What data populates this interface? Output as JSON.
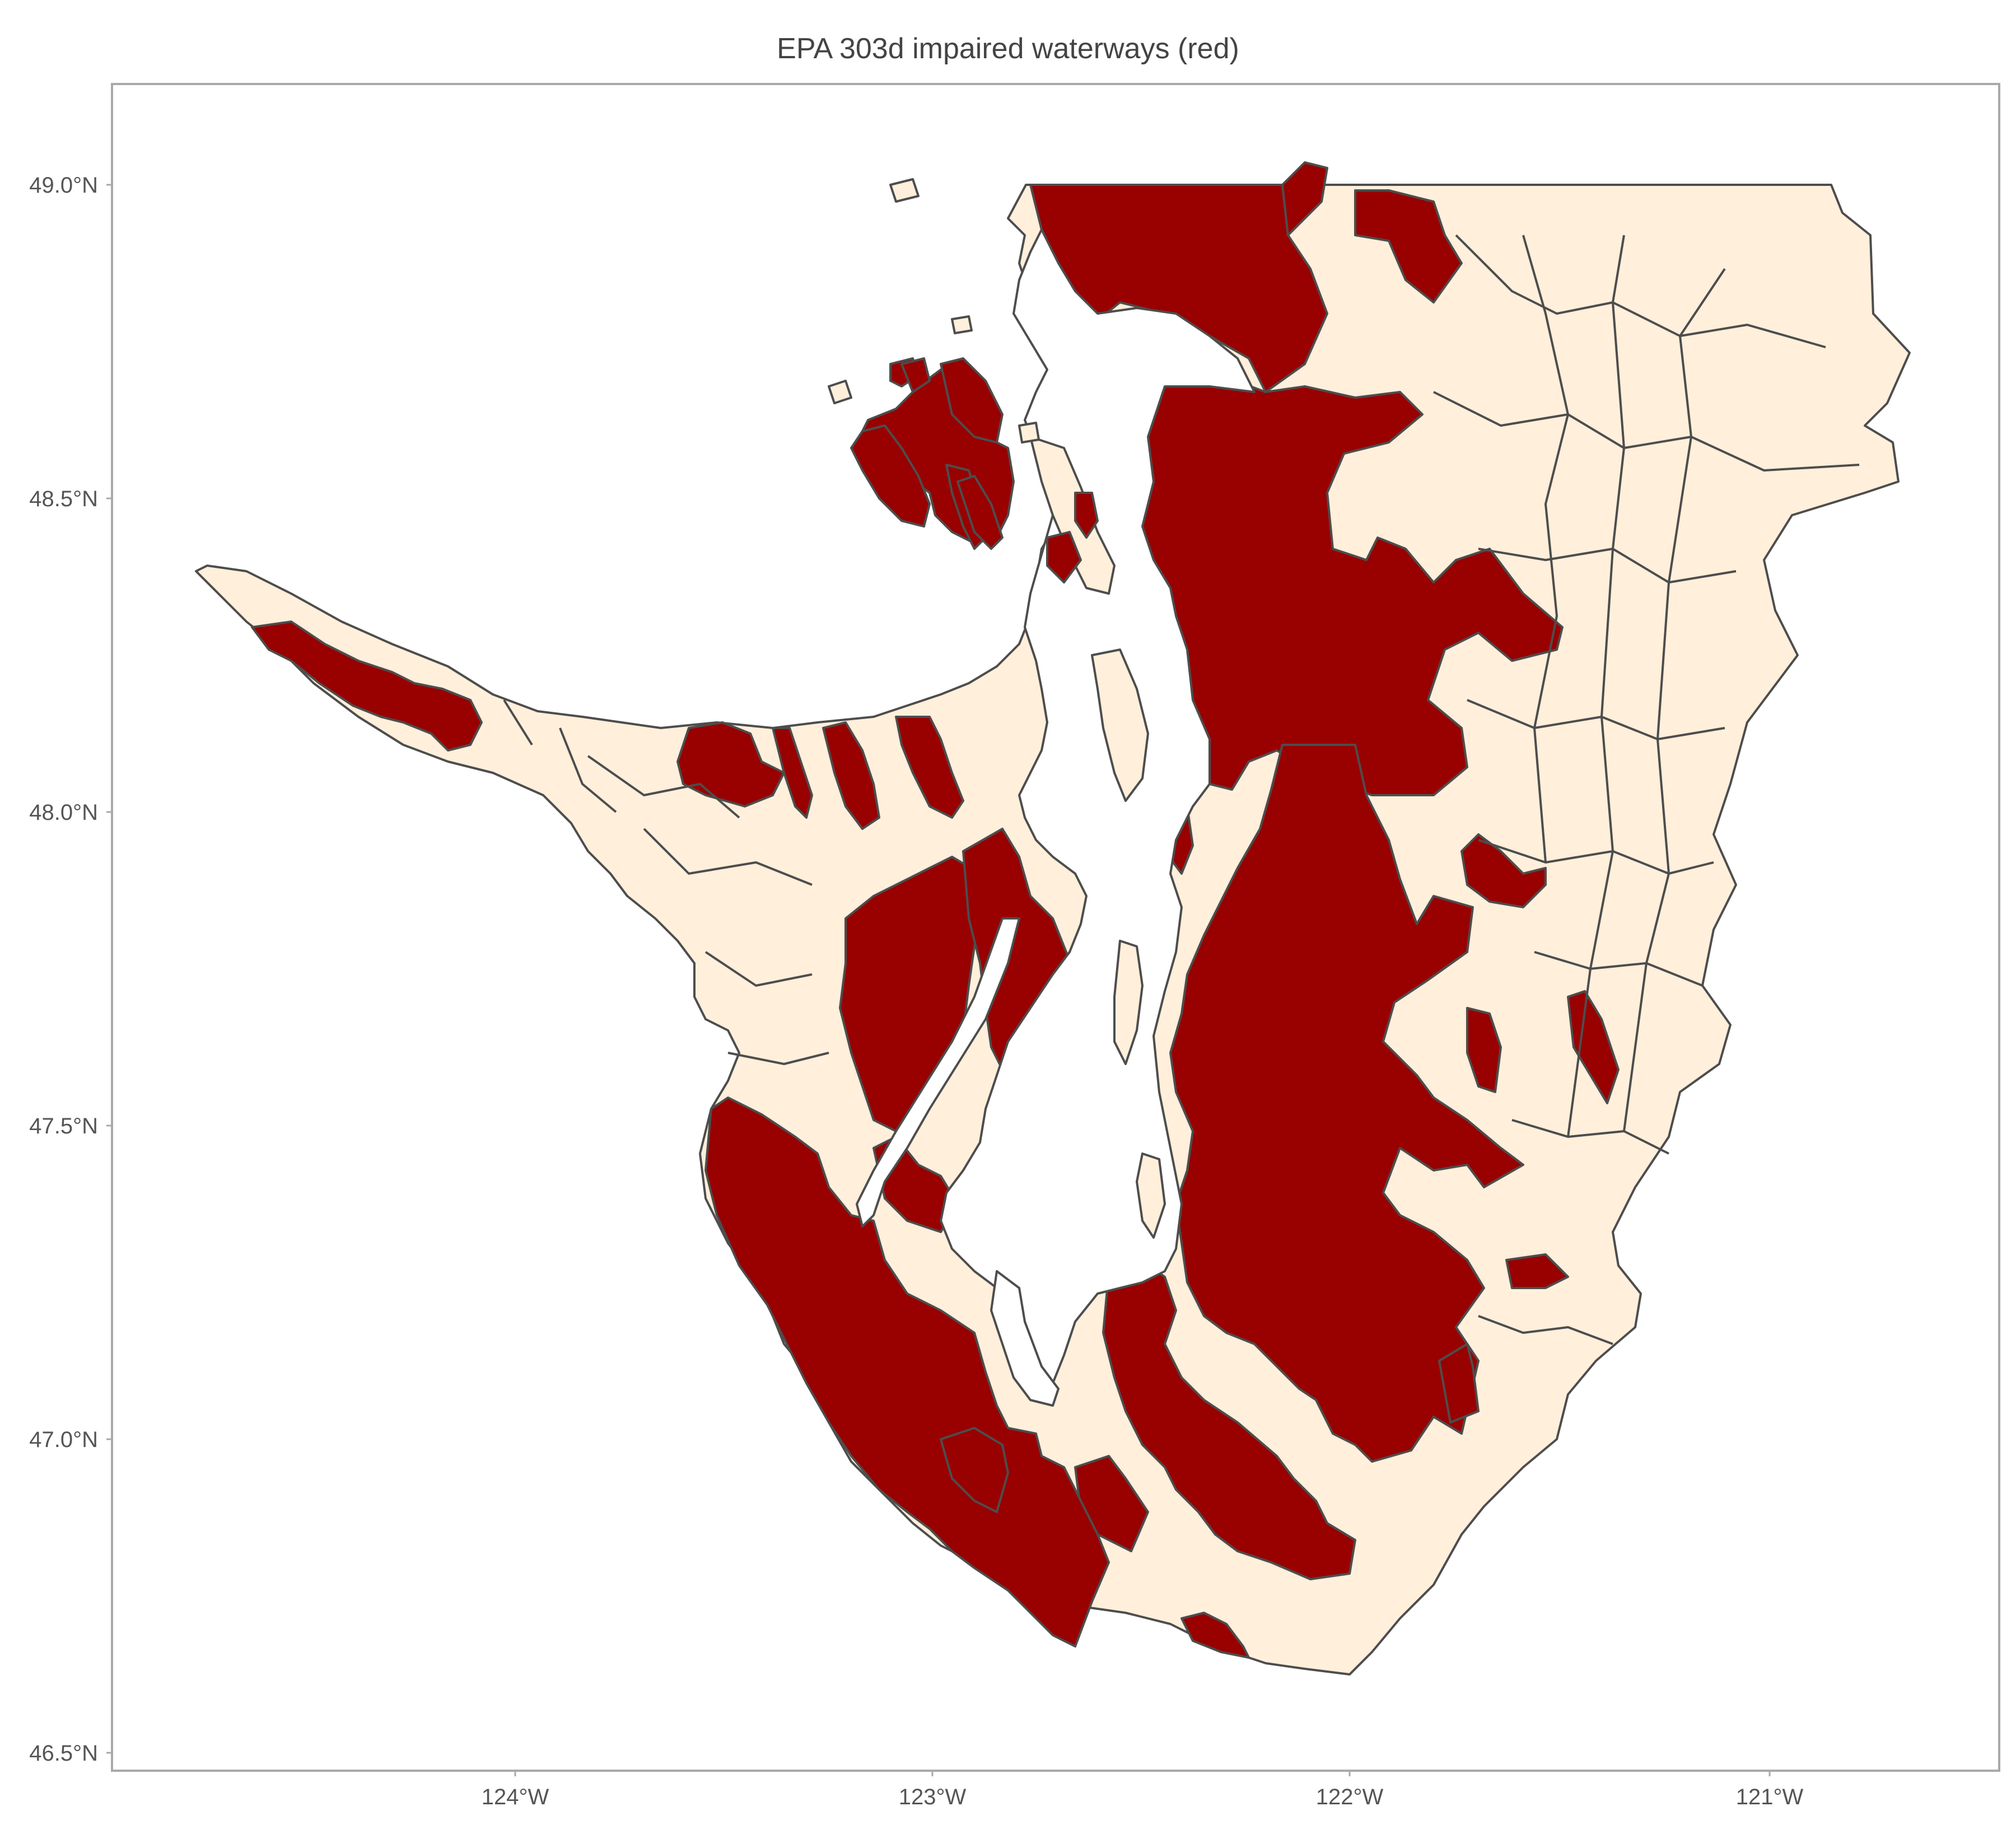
{
  "title": "EPA 303d impaired waterways (red)",
  "colors": {
    "impaired": "#990000",
    "unimpaired": "#ffefdb",
    "boundary": "#4d4d4d",
    "panel_border": "#a9a9a9",
    "background": "#ffffff"
  },
  "axes": {
    "x_ticks": [
      "124°W",
      "123°W",
      "122°W",
      "121°W"
    ],
    "y_ticks": [
      "49.0°N",
      "48.5°N",
      "48.0°N",
      "47.5°N",
      "47.0°N",
      "46.5°N"
    ]
  },
  "chart_data": {
    "type": "map",
    "title": "EPA 303d impaired waterways (red)",
    "xlabel": "",
    "ylabel": "",
    "xlim": [
      -124.95,
      -120.5
    ],
    "ylim": [
      46.48,
      49.16
    ],
    "x_ticks": [
      -124,
      -123,
      -122,
      -121
    ],
    "y_ticks": [
      49.0,
      48.5,
      48.0,
      47.5,
      47.0,
      46.5
    ],
    "grid": false,
    "legend": "none",
    "series": [
      {
        "category": "impaired",
        "fill": "#990000"
      },
      {
        "category": "not impaired",
        "fill": "#ffefdb"
      }
    ]
  }
}
